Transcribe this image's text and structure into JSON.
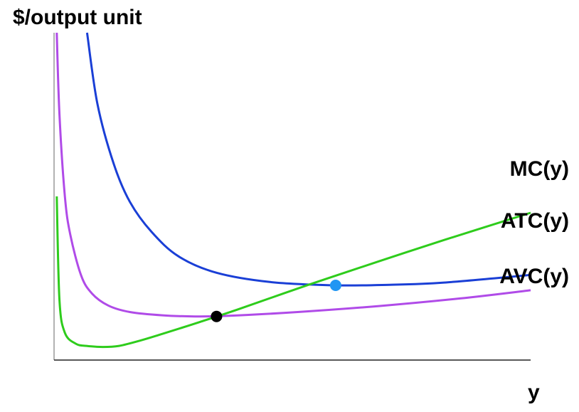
{
  "chart_data": {
    "type": "line",
    "title": "",
    "ylabel": "$/output unit",
    "xlabel": "y",
    "series": [
      {
        "name": "MC(y)",
        "color": "#2ecc1c",
        "points": [
          [
            0.5,
            30
          ],
          [
            1,
            11
          ],
          [
            2,
            5
          ],
          [
            4,
            3
          ],
          [
            6,
            2.6
          ],
          [
            9,
            2.4
          ],
          [
            12,
            2.6
          ],
          [
            16,
            3.6
          ],
          [
            20,
            4.8
          ],
          [
            27,
            7
          ],
          [
            34,
            9.3
          ],
          [
            47,
            13.8
          ],
          [
            60,
            18.1
          ],
          [
            72,
            22
          ],
          [
            88,
            27
          ]
        ]
      },
      {
        "name": "ATC(y)",
        "color": "#1a3fd6",
        "points": [
          [
            6.1,
            60
          ],
          [
            8,
            47
          ],
          [
            11,
            36
          ],
          [
            14,
            29
          ],
          [
            18,
            23.5
          ],
          [
            23,
            19
          ],
          [
            30,
            16
          ],
          [
            40,
            14.3
          ],
          [
            52,
            13.7
          ],
          [
            62,
            13.8
          ],
          [
            72,
            14.2
          ],
          [
            88,
            15.6
          ]
        ]
      },
      {
        "name": "AVC(y)",
        "color": "#b04be8",
        "points": [
          [
            0.5,
            60
          ],
          [
            1,
            45
          ],
          [
            2,
            30
          ],
          [
            3,
            23
          ],
          [
            5,
            15.5
          ],
          [
            7,
            12.2
          ],
          [
            10,
            10
          ],
          [
            14,
            8.8
          ],
          [
            20,
            8.2
          ],
          [
            26,
            8
          ],
          [
            32,
            8.1
          ],
          [
            45,
            8.8
          ],
          [
            60,
            9.9
          ],
          [
            75,
            11.3
          ],
          [
            88,
            12.8
          ]
        ]
      }
    ],
    "markers": [
      {
        "x": 30,
        "y": 8,
        "color": "#000000"
      },
      {
        "x": 52,
        "y": 13.7,
        "color": "#2196f3"
      }
    ],
    "xlim": [
      0,
      88
    ],
    "ylim": [
      0,
      60
    ],
    "grid": false,
    "legend": "inline labels at right end of curves",
    "ticks": "none"
  }
}
